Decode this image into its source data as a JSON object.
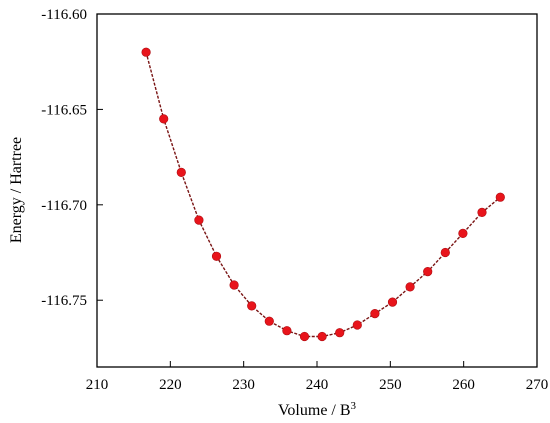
{
  "chart_data": {
    "type": "scatter",
    "title": "",
    "xlabel": "Volume / B",
    "xlabel_superscript": "3",
    "ylabel": "Energy / Hartree",
    "xlim": [
      210,
      270
    ],
    "ylim": [
      -116.785,
      -116.6
    ],
    "xticks": [
      210,
      220,
      230,
      240,
      250,
      260,
      270
    ],
    "yticks": [
      -116.6,
      -116.65,
      -116.7,
      -116.75
    ],
    "ytick_labels": [
      "-116.60",
      "-116.65",
      "-116.70",
      "-116.75"
    ],
    "grid": false,
    "legend": "none",
    "marker_color": "#e8141b",
    "line_color": "#7a1414",
    "series": [
      {
        "x": [
          216.7,
          219.1,
          221.5,
          223.9,
          226.3,
          228.7,
          231.1,
          233.5,
          235.9,
          238.3,
          240.7,
          243.1,
          245.5,
          247.9,
          250.3,
          252.7,
          255.1,
          257.5,
          259.9,
          262.5,
          265.0
        ],
        "y": [
          -116.62,
          -116.655,
          -116.683,
          -116.708,
          -116.727,
          -116.742,
          -116.753,
          -116.761,
          -116.766,
          -116.769,
          -116.769,
          -116.767,
          -116.763,
          -116.757,
          -116.751,
          -116.743,
          -116.735,
          -116.725,
          -116.715,
          -116.704,
          -116.696
        ]
      }
    ]
  }
}
